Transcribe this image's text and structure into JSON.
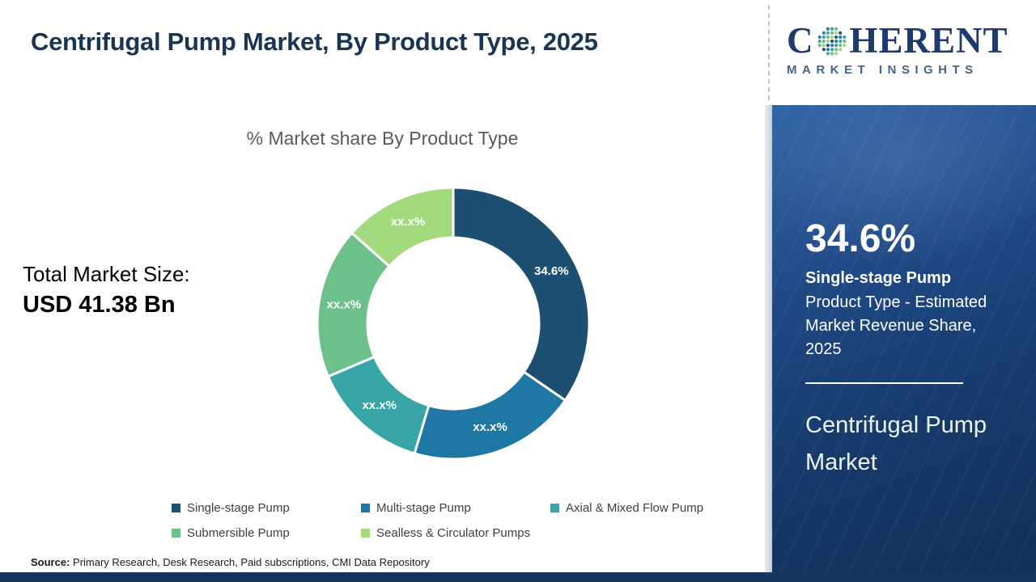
{
  "page": {
    "title": "Centrifugal Pump Market, By Product Type, 2025"
  },
  "logo": {
    "text_c": "C",
    "text_rest": "HERENT",
    "subtitle": "MARKET INSIGHTS"
  },
  "total_market": {
    "label": "Total Market Size:",
    "value": "USD 41.38 Bn"
  },
  "chart_data": {
    "type": "pie",
    "donut": true,
    "title": "% Market share By Product Type",
    "start_angle_deg": 0,
    "direction": "clockwise",
    "inner_radius_ratio": 0.63,
    "segments": [
      {
        "name": "Single-stage Pump",
        "label": "34.6%",
        "value": 34.6,
        "color": "#1c4f72"
      },
      {
        "name": "Multi-stage Pump",
        "label": "xx.x%",
        "value": 20.0,
        "color": "#1f77a3"
      },
      {
        "name": "Axial & Mixed Flow Pump",
        "label": "xx.x%",
        "value": 14.0,
        "color": "#38a6a6"
      },
      {
        "name": "Submersible Pump",
        "label": "xx.x%",
        "value": 18.0,
        "color": "#6dc08a"
      },
      {
        "name": "Sealless & Circulator Pumps",
        "label": "xx.x%",
        "value": 13.4,
        "color": "#a4da7e"
      }
    ]
  },
  "sidebar": {
    "stat_value": "34.6%",
    "stat_name": "Single-stage Pump",
    "stat_desc": "Product Type - Estimated Market Revenue Share, 2025",
    "market_name": "Centrifugal Pump Market"
  },
  "footer": {
    "source_label": "Source:",
    "source_text": " Primary Research, Desk Research, Paid subscriptions, CMI Data Repository"
  }
}
